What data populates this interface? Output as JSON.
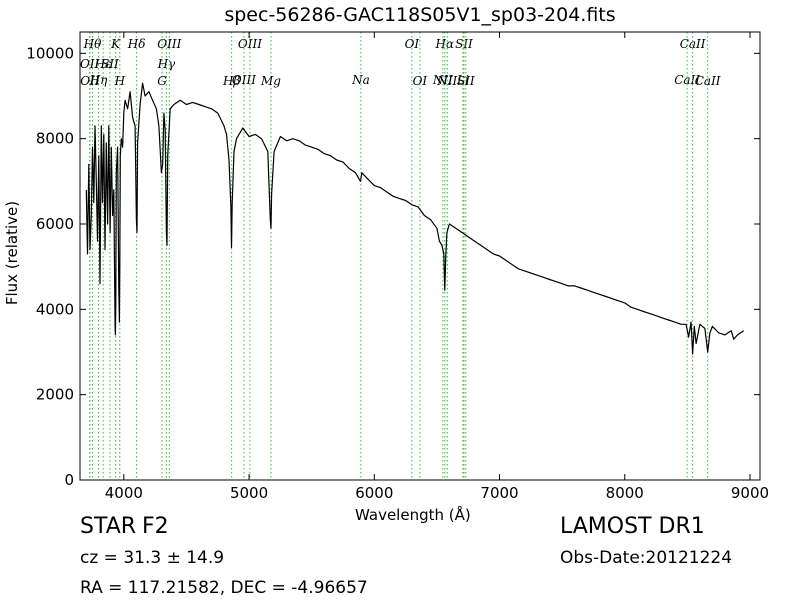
{
  "chart_data": {
    "type": "line",
    "title": "spec-56286-GAC118S05V1_sp03-204.fits",
    "xlabel": "Wavelength (Å)",
    "ylabel": "Flux (relative)",
    "xlim": [
      3650,
      9080
    ],
    "ylim": [
      0,
      10500
    ],
    "xticks": [
      4000,
      5000,
      6000,
      7000,
      8000,
      9000
    ],
    "yticks": [
      0,
      2000,
      4000,
      6000,
      8000,
      10000
    ],
    "grid": false,
    "series": [
      {
        "color": "#000000",
        "x": [
          3700,
          3710,
          3720,
          3730,
          3740,
          3750,
          3760,
          3770,
          3780,
          3790,
          3800,
          3810,
          3820,
          3830,
          3840,
          3850,
          3860,
          3870,
          3880,
          3890,
          3900,
          3910,
          3920,
          3930,
          3933,
          3936,
          3940,
          3950,
          3960,
          3965,
          3968,
          3972,
          3980,
          3990,
          4000,
          4010,
          4030,
          4050,
          4070,
          4090,
          4100,
          4105,
          4110,
          4130,
          4150,
          4170,
          4200,
          4230,
          4260,
          4280,
          4300,
          4310,
          4320,
          4330,
          4340,
          4345,
          4350,
          4370,
          4400,
          4450,
          4500,
          4550,
          4600,
          4650,
          4700,
          4750,
          4800,
          4820,
          4840,
          4855,
          4860,
          4865,
          4880,
          4900,
          4950,
          5000,
          5050,
          5100,
          5150,
          5170,
          5175,
          5180,
          5200,
          5250,
          5300,
          5350,
          5400,
          5450,
          5500,
          5550,
          5600,
          5650,
          5700,
          5750,
          5800,
          5850,
          5890,
          5900,
          5950,
          6000,
          6050,
          6100,
          6150,
          6200,
          6250,
          6300,
          6350,
          6400,
          6450,
          6500,
          6520,
          6540,
          6555,
          6563,
          6570,
          6580,
          6600,
          6650,
          6700,
          6750,
          6800,
          6850,
          6900,
          6950,
          7000,
          7050,
          7100,
          7150,
          7200,
          7250,
          7300,
          7350,
          7400,
          7450,
          7500,
          7550,
          7600,
          7650,
          7700,
          7750,
          7800,
          7850,
          7900,
          7950,
          8000,
          8050,
          8100,
          8150,
          8200,
          8250,
          8300,
          8350,
          8400,
          8450,
          8490,
          8500,
          8510,
          8530,
          8542,
          8555,
          8570,
          8600,
          8640,
          8662,
          8680,
          8700,
          8750,
          8800,
          8850,
          8870,
          8900,
          8950
        ],
        "y": [
          6800,
          5300,
          7400,
          5400,
          6200,
          7800,
          6500,
          8300,
          7000,
          5600,
          7600,
          4600,
          8300,
          6500,
          8100,
          5400,
          7900,
          6000,
          8300,
          5800,
          7800,
          6200,
          6800,
          3600,
          3400,
          4200,
          7200,
          7800,
          4500,
          3700,
          5000,
          7600,
          8000,
          7800,
          8600,
          8900,
          8700,
          9100,
          8500,
          8300,
          6100,
          5800,
          7900,
          8800,
          9300,
          9000,
          9100,
          8900,
          8700,
          8300,
          7200,
          7400,
          8600,
          8200,
          5800,
          5500,
          7600,
          8700,
          8800,
          8900,
          8800,
          8850,
          8800,
          8750,
          8700,
          8600,
          8300,
          8100,
          7500,
          6400,
          5450,
          6500,
          7700,
          8000,
          8250,
          8050,
          8100,
          8000,
          7700,
          6100,
          5900,
          6700,
          7700,
          8050,
          7950,
          8000,
          7950,
          7850,
          7800,
          7750,
          7650,
          7600,
          7500,
          7450,
          7300,
          7200,
          7000,
          7200,
          7050,
          6900,
          6850,
          6750,
          6650,
          6600,
          6550,
          6450,
          6400,
          6200,
          6100,
          5900,
          5600,
          5500,
          5300,
          4450,
          5200,
          5800,
          6000,
          5900,
          5800,
          5700,
          5600,
          5500,
          5400,
          5300,
          5250,
          5150,
          5050,
          4950,
          4900,
          4850,
          4800,
          4750,
          4700,
          4650,
          4600,
          4550,
          4550,
          4500,
          4450,
          4400,
          4350,
          4300,
          4250,
          4200,
          4150,
          4050,
          4000,
          3950,
          3900,
          3850,
          3800,
          3750,
          3700,
          3650,
          3650,
          3500,
          3350,
          3700,
          2950,
          3600,
          3200,
          3650,
          3550,
          3000,
          3450,
          3600,
          3450,
          3400,
          3500,
          3300,
          3400,
          3500
        ]
      }
    ],
    "line_markers": [
      {
        "wavelength": 3750,
        "label": "Hθ",
        "row": 0
      },
      {
        "wavelength": 3727,
        "label": "OII",
        "row": 1
      },
      {
        "wavelength": 3729,
        "label": "OII",
        "row": 3
      },
      {
        "wavelength": 3798,
        "label": "Hη",
        "row": 2
      },
      {
        "wavelength": 3835,
        "label": "Hε",
        "row": 1
      },
      {
        "wavelength": 3934,
        "label": "K",
        "row": 0
      },
      {
        "wavelength": 3889,
        "label": "SII",
        "row": 1
      },
      {
        "wavelength": 3968,
        "label": "H",
        "row": 3
      },
      {
        "wavelength": 4102,
        "label": "Hδ",
        "row": 0
      },
      {
        "wavelength": 4340,
        "label": "Hγ",
        "row": 1
      },
      {
        "wavelength": 4363,
        "label": "OIII",
        "row": 0
      },
      {
        "wavelength": 4305,
        "label": "G",
        "row": 3
      },
      {
        "wavelength": 4861,
        "label": "Hβ",
        "row": 3
      },
      {
        "wavelength": 4959,
        "label": "OIII",
        "row": 2
      },
      {
        "wavelength": 5007,
        "label": "OIII",
        "row": 0
      },
      {
        "wavelength": 5175,
        "label": "Mg",
        "row": 3
      },
      {
        "wavelength": 5893,
        "label": "Na",
        "row": 2
      },
      {
        "wavelength": 6300,
        "label": "OI",
        "row": 0
      },
      {
        "wavelength": 6364,
        "label": "OI",
        "row": 3
      },
      {
        "wavelength": 6563,
        "label": "Hα",
        "row": 0
      },
      {
        "wavelength": 6548,
        "label": "NII",
        "row": 2
      },
      {
        "wavelength": 6583,
        "label": "NII",
        "row": 3
      },
      {
        "wavelength": 6716,
        "label": "SII",
        "row": 0
      },
      {
        "wavelength": 6708,
        "label": "Li",
        "row": 2
      },
      {
        "wavelength": 6731,
        "label": "SII",
        "row": 3
      },
      {
        "wavelength": 8498,
        "label": "CaII",
        "row": 2
      },
      {
        "wavelength": 8542,
        "label": "CaII",
        "row": 0
      },
      {
        "wavelength": 8662,
        "label": "CaII",
        "row": 3
      }
    ],
    "marker_color": "#3cb043"
  },
  "info": {
    "object_class": "STAR",
    "subclass": "F2",
    "cz": "cz = 31.3 ± 14.9",
    "coords": "RA = 117.21582, DEC = -4.96657",
    "survey": "LAMOST DR1",
    "obs_date": "Obs-Date:20121224"
  }
}
